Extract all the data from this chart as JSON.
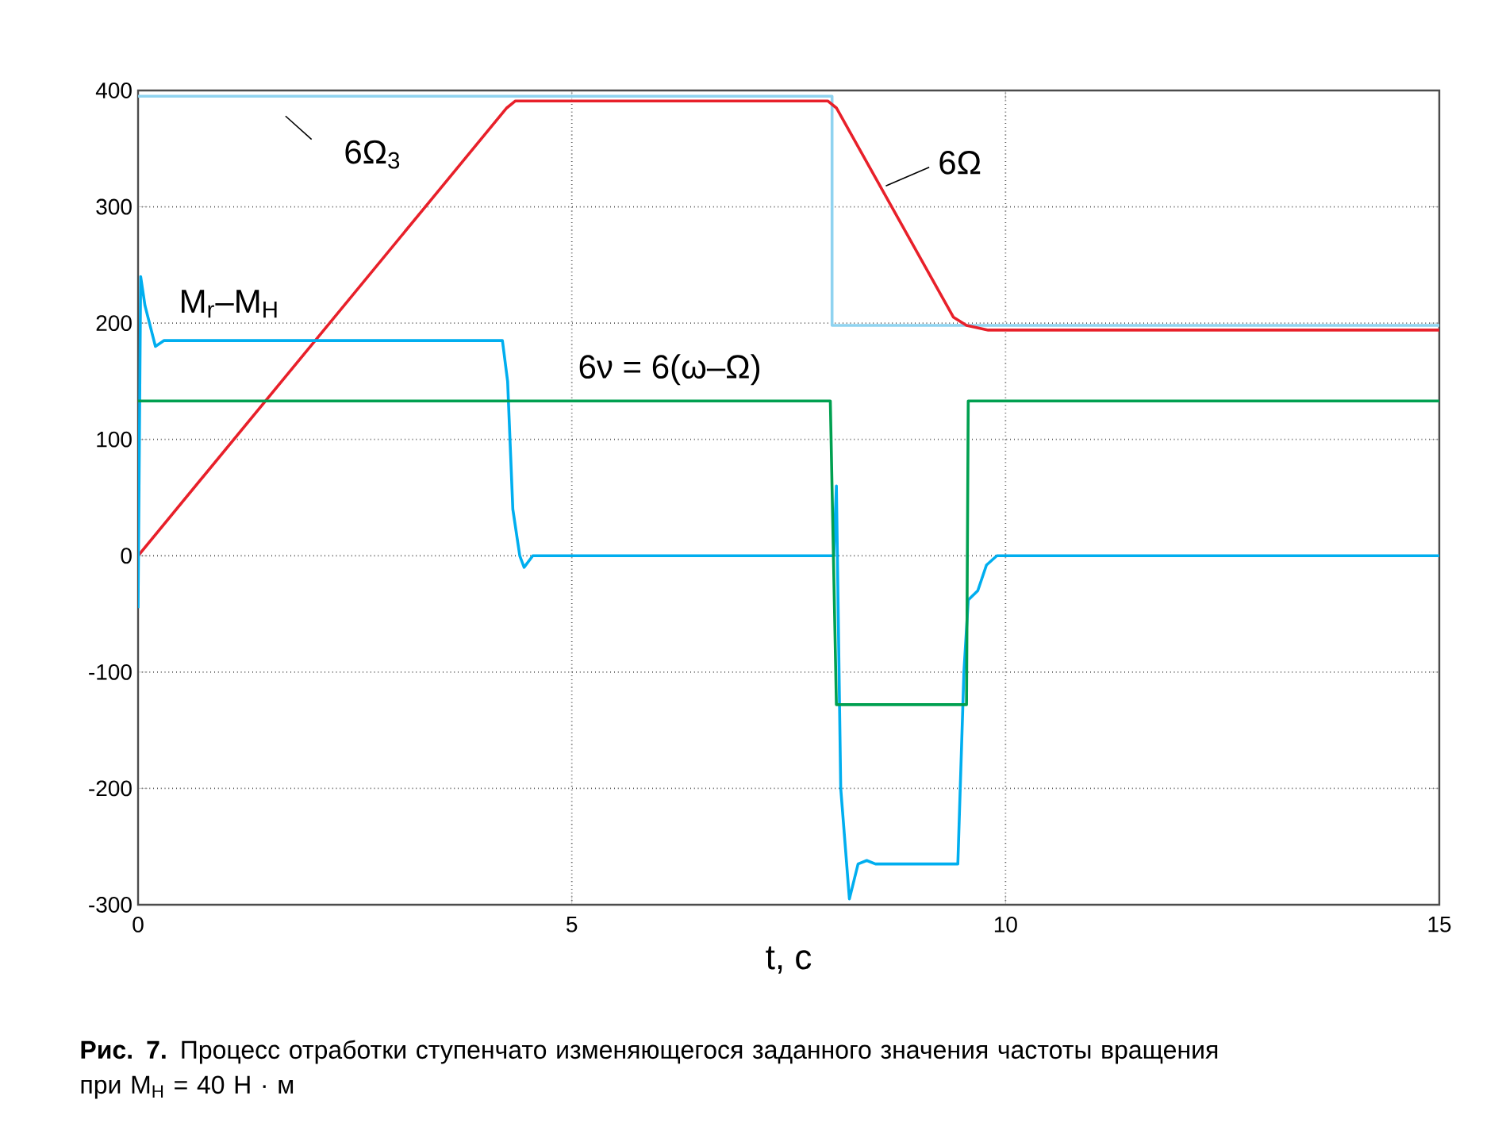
{
  "chart_data": {
    "type": "line",
    "xlabel": "t, с",
    "xlim": [
      0,
      15
    ],
    "xticks": [
      0,
      5,
      10,
      15
    ],
    "ylim": [
      -300,
      400
    ],
    "yticks": [
      -300,
      -200,
      -100,
      0,
      100,
      200,
      300,
      400
    ],
    "grid": true,
    "legend": false,
    "line_style": "solid",
    "marker": "none",
    "series": [
      {
        "name": "6Ω$_{3}$",
        "color": "#8fd3f0",
        "x": [
          0,
          8.0,
          8.0,
          15
        ],
        "values": [
          395,
          395,
          198,
          198
        ]
      },
      {
        "name": "6Ω",
        "color": "#e8202a",
        "x": [
          0,
          4.25,
          4.35,
          7.95,
          8.05,
          9.4,
          9.55,
          9.8,
          15
        ],
        "values": [
          0,
          385,
          391,
          391,
          385,
          205,
          198,
          194,
          194
        ]
      },
      {
        "name": "M$_{r}$–M$_{H}$",
        "color": "#00aeef",
        "x": [
          0,
          0.03,
          0.08,
          0.2,
          0.3,
          4.2,
          4.26,
          4.32,
          4.4,
          4.45,
          4.55,
          7.98,
          8.02,
          8.05,
          8.1,
          8.2,
          8.3,
          8.4,
          8.5,
          9.45,
          9.52,
          9.57,
          9.68,
          9.78,
          9.9,
          15
        ],
        "values": [
          -45,
          240,
          215,
          180,
          185,
          185,
          150,
          40,
          0,
          -10,
          0,
          0,
          0,
          60,
          -200,
          -295,
          -265,
          -262,
          -265,
          -265,
          -100,
          -38,
          -30,
          -8,
          0,
          0
        ]
      },
      {
        "name": "6ν = 6(ω–Ω)",
        "color": "#00a050",
        "x": [
          0,
          7.98,
          8.05,
          9.55,
          9.57,
          15
        ],
        "values": [
          133,
          133,
          -128,
          -128,
          133,
          133
        ]
      }
    ],
    "annotations": [
      "**Рис. 7.** Процесс отработки ступенчато изменяющегося заданного значения частоты вращения при M$_{Н}$ = 40 Н · м"
    ]
  }
}
